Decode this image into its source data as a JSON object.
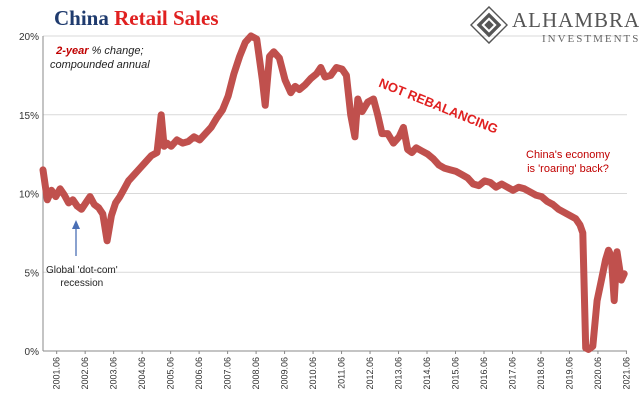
{
  "chart_data": {
    "type": "line",
    "title_part1": "China",
    "title_part2": "Retail Sales",
    "ylim": [
      0,
      20
    ],
    "yticks": [
      "0%",
      "5%",
      "10%",
      "15%",
      "20%"
    ],
    "xticks": [
      "2001.06",
      "2002.06",
      "2003.06",
      "2004.06",
      "2005.06",
      "2006.06",
      "2007.06",
      "2008.06",
      "2009.06",
      "2010.06",
      "2011.06",
      "2012.06",
      "2013.06",
      "2014.06",
      "2015.06",
      "2016.06",
      "2017.06",
      "2018.06",
      "2019.06",
      "2020.06",
      "2021.06"
    ],
    "xlim": [
      2001.0,
      2021.5
    ],
    "series_color": "#c0504d",
    "x": [
      2001.0,
      2001.15,
      2001.3,
      2001.45,
      2001.6,
      2001.75,
      2001.9,
      2002.05,
      2002.2,
      2002.35,
      2002.5,
      2002.65,
      2002.8,
      2002.95,
      2003.1,
      2003.25,
      2003.4,
      2003.55,
      2003.7,
      2003.85,
      2004.0,
      2004.2,
      2004.4,
      2004.6,
      2004.8,
      2005.0,
      2005.15,
      2005.25,
      2005.35,
      2005.5,
      2005.7,
      2005.9,
      2006.1,
      2006.3,
      2006.5,
      2006.7,
      2006.9,
      2007.1,
      2007.3,
      2007.5,
      2007.7,
      2007.9,
      2008.1,
      2008.3,
      2008.5,
      2008.7,
      2008.8,
      2008.95,
      2009.1,
      2009.3,
      2009.5,
      2009.7,
      2009.85,
      2010.0,
      2010.2,
      2010.4,
      2010.6,
      2010.75,
      2010.9,
      2011.1,
      2011.3,
      2011.5,
      2011.65,
      2011.8,
      2011.95,
      2012.05,
      2012.2,
      2012.4,
      2012.6,
      2012.75,
      2012.9,
      2013.1,
      2013.3,
      2013.5,
      2013.65,
      2013.8,
      2013.95,
      2014.1,
      2014.3,
      2014.5,
      2014.7,
      2014.9,
      2015.1,
      2015.3,
      2015.5,
      2015.7,
      2015.9,
      2016.1,
      2016.3,
      2016.5,
      2016.7,
      2016.9,
      2017.1,
      2017.3,
      2017.5,
      2017.7,
      2017.9,
      2018.1,
      2018.3,
      2018.5,
      2018.7,
      2018.9,
      2019.1,
      2019.3,
      2019.5,
      2019.7,
      2019.85,
      2019.95,
      2020.05,
      2020.15,
      2020.3,
      2020.45,
      2020.6,
      2020.75,
      2020.85,
      2020.95,
      2021.05,
      2021.15,
      2021.3,
      2021.4
    ],
    "values": [
      11.5,
      9.6,
      10.2,
      9.8,
      10.3,
      9.9,
      9.4,
      9.6,
      9.2,
      9.0,
      9.4,
      9.8,
      9.3,
      9.1,
      8.7,
      7.0,
      8.6,
      9.4,
      9.8,
      10.3,
      10.8,
      11.2,
      11.6,
      12.0,
      12.4,
      12.6,
      15.0,
      13.0,
      13.2,
      13.0,
      13.4,
      13.2,
      13.3,
      13.6,
      13.4,
      13.8,
      14.2,
      14.8,
      15.3,
      16.2,
      17.6,
      18.7,
      19.6,
      20.0,
      19.8,
      17.2,
      15.6,
      18.7,
      19.0,
      18.6,
      17.2,
      16.4,
      16.8,
      16.6,
      16.9,
      17.3,
      17.6,
      18.0,
      17.4,
      17.5,
      18.0,
      17.9,
      17.5,
      15.0,
      13.6,
      16.0,
      15.2,
      15.8,
      16.0,
      15.0,
      13.8,
      13.8,
      13.2,
      13.6,
      14.2,
      12.8,
      12.6,
      12.9,
      12.7,
      12.5,
      12.2,
      11.8,
      11.6,
      11.5,
      11.4,
      11.2,
      11.0,
      10.6,
      10.5,
      10.8,
      10.7,
      10.4,
      10.6,
      10.4,
      10.2,
      10.4,
      10.3,
      10.1,
      9.9,
      9.8,
      9.5,
      9.3,
      9.0,
      8.8,
      8.6,
      8.4,
      8.0,
      7.5,
      0.2,
      0.1,
      0.3,
      3.2,
      4.5,
      5.8,
      6.4,
      6.0,
      3.2,
      6.3,
      4.5,
      4.9
    ]
  },
  "annotations": {
    "method_red": "2-year",
    "method_rest": "% change;",
    "method_line2": "compounded annual",
    "not_rebalancing": "NOT REBALANCING",
    "roaring_line1": "China's economy",
    "roaring_line2": "is 'roaring' back?",
    "dotcom_line1": "Global 'dot-com'",
    "dotcom_line2": "recession"
  },
  "logo": {
    "name": "ALHAMBRA",
    "sub": "INVESTMENTS",
    "icon": "alhambra-diamond-icon"
  }
}
